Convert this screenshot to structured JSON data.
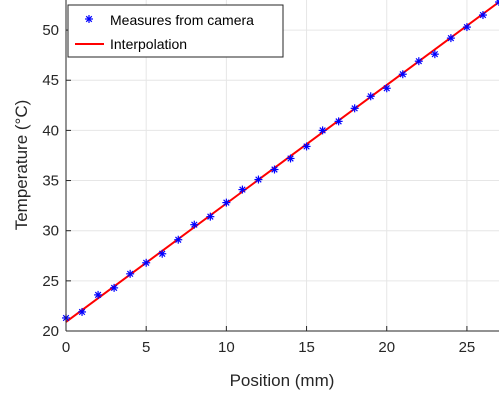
{
  "chart_data": {
    "type": "scatter",
    "xlabel": "Position (mm)",
    "ylabel": "Temperature (°C)",
    "xlim": [
      0,
      27
    ],
    "ylim": [
      20,
      53
    ],
    "xticks": [
      0,
      5,
      10,
      15,
      20,
      25
    ],
    "yticks": [
      20,
      25,
      30,
      35,
      40,
      45,
      50
    ],
    "grid": true,
    "legend_position": "top-left",
    "series": [
      {
        "name": "Measures from camera",
        "marker": "asterisk",
        "color": "#0000ff",
        "x": [
          0,
          1,
          2,
          3,
          4,
          5,
          6,
          7,
          8,
          9,
          10,
          11,
          12,
          13,
          14,
          15,
          16,
          17,
          18,
          19,
          20,
          21,
          22,
          23,
          24,
          25,
          26,
          27
        ],
        "y": [
          21.3,
          21.9,
          23.6,
          24.3,
          25.7,
          26.8,
          27.7,
          29.1,
          30.6,
          31.4,
          32.8,
          34.1,
          35.1,
          36.1,
          37.2,
          38.4,
          40.0,
          40.9,
          42.2,
          43.4,
          44.2,
          45.6,
          46.9,
          47.6,
          49.2,
          50.3,
          51.5,
          52.8
        ]
      },
      {
        "name": "Interpolation",
        "style": "line",
        "color": "#ff0000",
        "x": [
          0,
          27
        ],
        "y": [
          20.9,
          52.8
        ]
      }
    ]
  }
}
